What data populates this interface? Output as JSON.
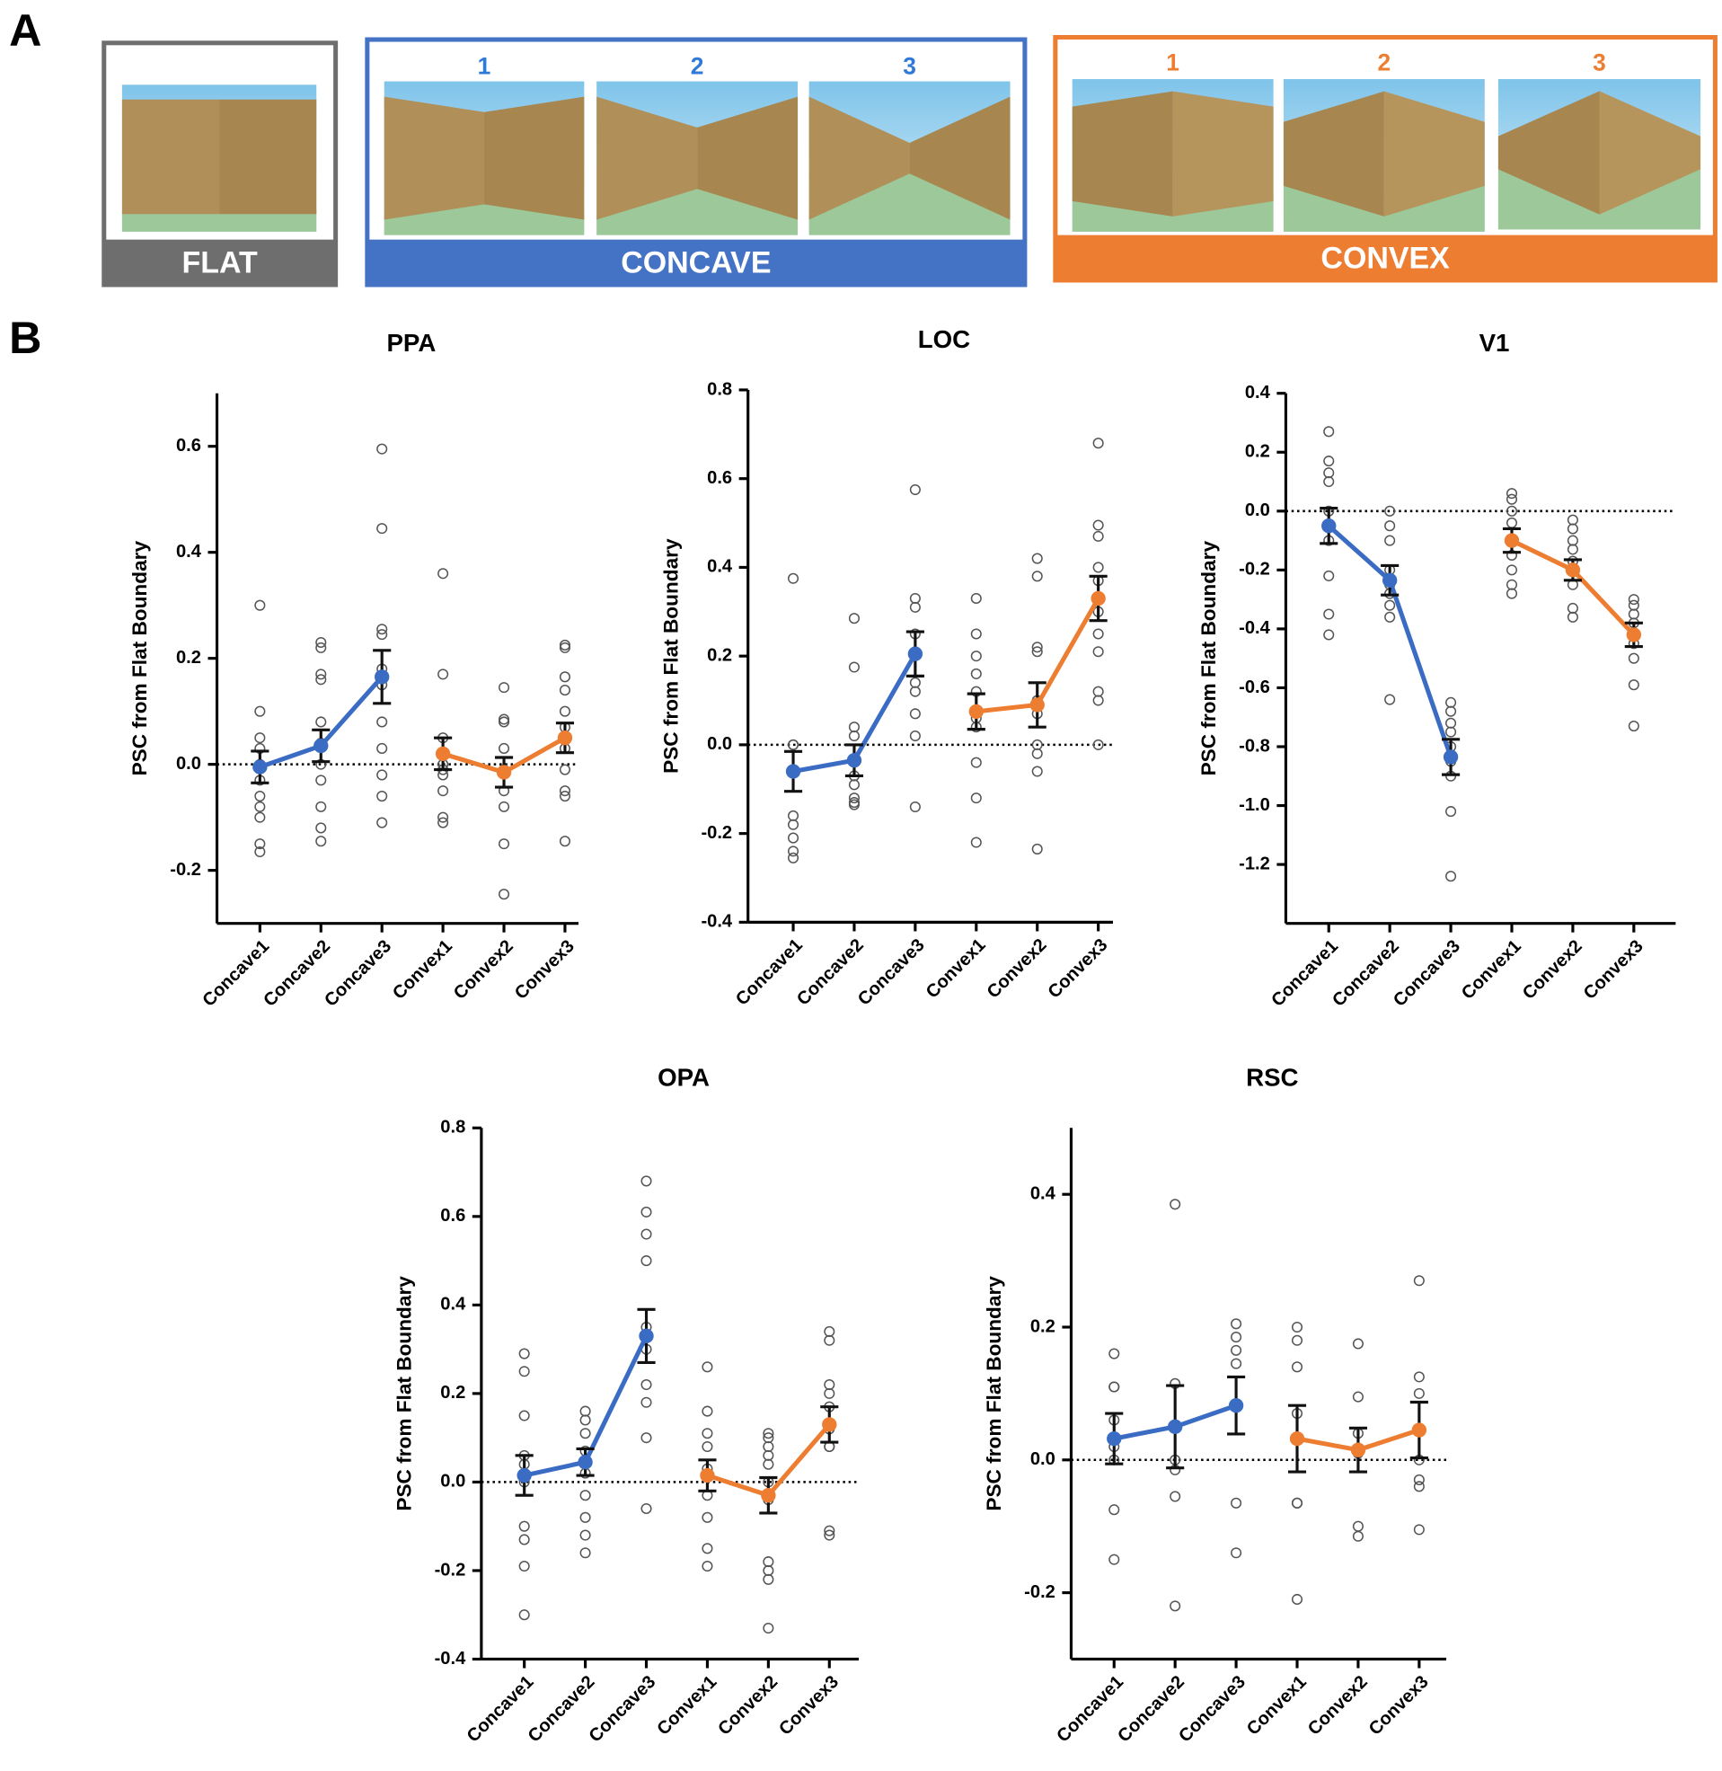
{
  "panel_labels": [
    "A",
    "B"
  ],
  "panel_a": [
    {
      "label": "FLAT"
    },
    {
      "label": "CONCAVE",
      "numbers": [
        "1",
        "2",
        "3"
      ]
    },
    {
      "label": "CONVEX",
      "numbers": [
        "1",
        "2",
        "3"
      ]
    }
  ],
  "chart_data": [
    {
      "type": "line",
      "title": "PPA",
      "y_label": "PSC from Flat Boundary",
      "categories": [
        "Concave1",
        "Concave2",
        "Concave3",
        "Convex1",
        "Convex2",
        "Convex3"
      ],
      "ylim": [
        -0.3,
        0.7
      ],
      "yticks": [
        -0.2,
        {
          "value": 0,
          "label": "0.0"
        },
        0.2,
        0.4,
        0.6
      ],
      "series": [
        {
          "color": "#3b6cc4",
          "values": [
            -0.005,
            0.035,
            0.165,
            null,
            null,
            null
          ],
          "errors": [
            0.03,
            0.03,
            0.05,
            null,
            null,
            null
          ]
        },
        {
          "color": "#ed7d31",
          "values": [
            null,
            null,
            null,
            0.02,
            -0.015,
            0.05
          ],
          "errors": [
            null,
            null,
            null,
            0.03,
            0.028,
            0.028
          ]
        }
      ],
      "points": [
        [
          0.3,
          0.1,
          0.05,
          0.03,
          0.0,
          -0.03,
          -0.06,
          -0.08,
          -0.1,
          -0.15,
          -0.165
        ],
        [
          0.23,
          0.22,
          0.17,
          0.16,
          0.08,
          0.04,
          0.0,
          -0.03,
          -0.08,
          -0.12,
          -0.145
        ],
        [
          0.595,
          0.445,
          0.255,
          0.245,
          0.18,
          0.15,
          0.08,
          0.03,
          -0.02,
          -0.06,
          -0.11
        ],
        [
          0.36,
          0.17,
          0.05,
          0.0,
          -0.01,
          -0.02,
          -0.05,
          -0.1,
          -0.11
        ],
        [
          0.145,
          0.085,
          0.08,
          0.03,
          -0.01,
          -0.05,
          -0.08,
          -0.15,
          -0.245
        ],
        [
          0.225,
          0.22,
          0.165,
          0.14,
          0.1,
          0.07,
          0.03,
          -0.01,
          -0.05,
          -0.06,
          -0.145
        ]
      ]
    },
    {
      "type": "line",
      "title": "LOC",
      "y_label": "PSC from Flat Boundary",
      "categories": [
        "Concave1",
        "Concave2",
        "Concave3",
        "Convex1",
        "Convex2",
        "Convex3"
      ],
      "ylim": [
        -0.4,
        0.8
      ],
      "yticks": [
        -0.4,
        -0.2,
        {
          "value": 0,
          "label": "0.0"
        },
        0.2,
        0.4,
        0.6,
        0.8
      ],
      "series": [
        {
          "color": "#3b6cc4",
          "values": [
            -0.06,
            -0.035,
            0.205,
            null,
            null,
            null
          ],
          "errors": [
            0.045,
            0.035,
            0.05,
            null,
            null,
            null
          ]
        },
        {
          "color": "#ed7d31",
          "values": [
            null,
            null,
            null,
            0.075,
            0.09,
            0.33
          ],
          "errors": [
            null,
            null,
            null,
            0.04,
            0.05,
            0.05
          ]
        }
      ],
      "points": [
        [
          0.375,
          0.0,
          0.0,
          -0.06,
          -0.16,
          -0.18,
          -0.21,
          -0.24,
          -0.255
        ],
        [
          0.285,
          0.175,
          0.04,
          0.02,
          -0.07,
          -0.09,
          -0.12,
          -0.13,
          -0.135
        ],
        [
          0.575,
          0.33,
          0.31,
          0.25,
          0.21,
          0.14,
          0.12,
          0.07,
          0.02,
          -0.14
        ],
        [
          0.33,
          0.25,
          0.2,
          0.16,
          0.12,
          0.06,
          0.04,
          -0.04,
          -0.12,
          -0.22
        ],
        [
          0.42,
          0.38,
          0.22,
          0.21,
          0.1,
          0.07,
          0.0,
          -0.02,
          -0.06,
          -0.235
        ],
        [
          0.68,
          0.495,
          0.47,
          0.4,
          0.37,
          0.3,
          0.25,
          0.21,
          0.12,
          0.1,
          0.0
        ]
      ]
    },
    {
      "type": "line",
      "title": "V1",
      "y_label": "PSC from Flat Boundary",
      "categories": [
        "Concave1",
        "Concave2",
        "Concave3",
        "Convex1",
        "Convex2",
        "Convex3"
      ],
      "ylim": [
        -1.4,
        0.4
      ],
      "yticks": [
        -1.2,
        {
          "value": -1,
          "label": "-1.0"
        },
        -0.8,
        -0.6,
        -0.4,
        -0.2,
        {
          "value": 0,
          "label": "0.0"
        },
        0.2,
        0.4
      ],
      "series": [
        {
          "color": "#3b6cc4",
          "values": [
            -0.05,
            -0.235,
            -0.835,
            null,
            null,
            null
          ],
          "errors": [
            0.06,
            0.05,
            0.06,
            null,
            null,
            null
          ]
        },
        {
          "color": "#ed7d31",
          "values": [
            null,
            null,
            null,
            -0.1,
            -0.2,
            -0.42
          ],
          "errors": [
            null,
            null,
            null,
            0.04,
            0.035,
            0.04
          ]
        }
      ],
      "points": [
        [
          0.27,
          0.17,
          0.13,
          0.1,
          0.0,
          -0.05,
          -0.1,
          -0.22,
          -0.35,
          -0.42
        ],
        [
          0.0,
          -0.05,
          -0.1,
          -0.2,
          -0.25,
          -0.28,
          -0.32,
          -0.36,
          -0.64
        ],
        [
          -0.65,
          -0.68,
          -0.72,
          -0.75,
          -0.8,
          -0.85,
          -0.9,
          -1.02,
          -1.24
        ],
        [
          0.06,
          0.04,
          0.0,
          -0.04,
          -0.1,
          -0.15,
          -0.2,
          -0.25,
          -0.28
        ],
        [
          -0.03,
          -0.06,
          -0.1,
          -0.13,
          -0.17,
          -0.2,
          -0.25,
          -0.33,
          -0.36
        ],
        [
          -0.3,
          -0.32,
          -0.35,
          -0.38,
          -0.42,
          -0.45,
          -0.5,
          -0.59,
          -0.73
        ]
      ]
    },
    {
      "type": "line",
      "title": "OPA",
      "y_label": "PSC from Flat Boundary",
      "categories": [
        "Concave1",
        "Concave2",
        "Concave3",
        "Convex1",
        "Convex2",
        "Convex3"
      ],
      "ylim": [
        -0.4,
        0.8
      ],
      "yticks": [
        -0.4,
        -0.2,
        {
          "value": 0,
          "label": "0.0"
        },
        0.2,
        0.4,
        0.6,
        0.8
      ],
      "series": [
        {
          "color": "#3b6cc4",
          "values": [
            0.015,
            0.045,
            0.33,
            null,
            null,
            null
          ],
          "errors": [
            0.045,
            0.03,
            0.06,
            null,
            null,
            null
          ]
        },
        {
          "color": "#ed7d31",
          "values": [
            null,
            null,
            null,
            0.015,
            -0.03,
            0.13
          ],
          "errors": [
            null,
            null,
            null,
            0.035,
            0.04,
            0.04
          ]
        }
      ],
      "points": [
        [
          0.29,
          0.25,
          0.15,
          0.06,
          0.04,
          0.0,
          -0.1,
          -0.13,
          -0.19,
          -0.3
        ],
        [
          0.16,
          0.14,
          0.11,
          0.07,
          0.02,
          -0.03,
          -0.08,
          -0.12,
          -0.16
        ],
        [
          0.68,
          0.61,
          0.56,
          0.5,
          0.35,
          0.3,
          0.22,
          0.18,
          0.1,
          -0.06
        ],
        [
          0.26,
          0.16,
          0.11,
          0.08,
          0.03,
          -0.03,
          -0.08,
          -0.15,
          -0.19
        ],
        [
          0.11,
          0.1,
          0.08,
          0.06,
          0.04,
          0.0,
          -0.04,
          -0.18,
          -0.2,
          -0.22,
          -0.33
        ],
        [
          0.34,
          0.32,
          0.22,
          0.2,
          0.17,
          0.12,
          0.08,
          0.08,
          -0.11,
          -0.12
        ]
      ]
    },
    {
      "type": "line",
      "title": "RSC",
      "y_label": "PSC from Flat Boundary",
      "categories": [
        "Concave1",
        "Concave2",
        "Concave3",
        "Convex1",
        "Convex2",
        "Convex3"
      ],
      "ylim": [
        -0.3,
        0.5
      ],
      "yticks": [
        -0.2,
        {
          "value": 0,
          "label": "0.0"
        },
        0.2,
        0.4
      ],
      "series": [
        {
          "color": "#3b6cc4",
          "values": [
            0.032,
            0.05,
            0.082,
            null,
            null,
            null
          ],
          "errors": [
            0.038,
            0.062,
            0.043,
            null,
            null,
            null
          ]
        },
        {
          "color": "#ed7d31",
          "values": [
            null,
            null,
            null,
            0.032,
            0.015,
            0.045
          ],
          "errors": [
            null,
            null,
            null,
            0.05,
            0.033,
            0.042
          ]
        }
      ],
      "points": [
        [
          0.16,
          0.11,
          0.11,
          0.06,
          0.02,
          0.0,
          -0.075,
          -0.15
        ],
        [
          0.385,
          0.115,
          0.05,
          0.0,
          -0.015,
          -0.055,
          -0.22
        ],
        [
          0.205,
          0.185,
          0.165,
          0.145,
          0.08,
          -0.065,
          -0.14
        ],
        [
          0.2,
          0.18,
          0.14,
          0.07,
          0.03,
          -0.065,
          -0.065,
          -0.21
        ],
        [
          0.175,
          0.095,
          0.04,
          0.01,
          -0.1,
          -0.115
        ],
        [
          0.27,
          0.125,
          0.1,
          0.045,
          0.0,
          -0.03,
          -0.04,
          -0.105
        ]
      ]
    }
  ]
}
